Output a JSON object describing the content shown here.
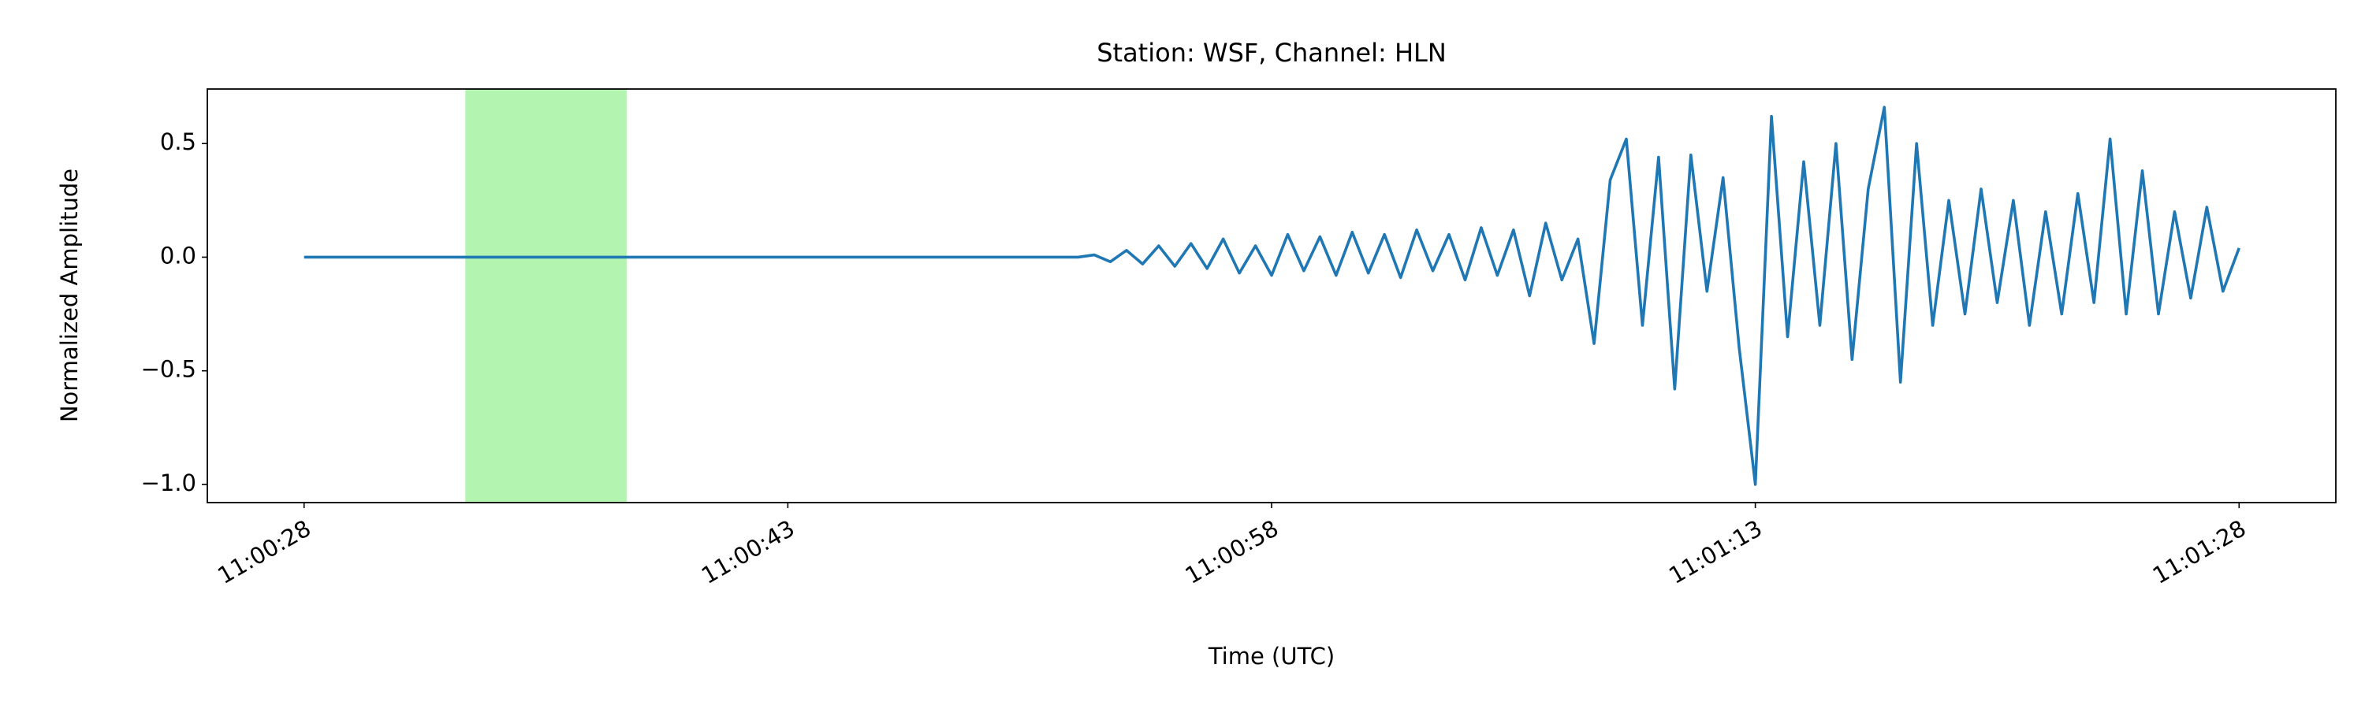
{
  "chart_data": {
    "type": "line",
    "title": "Station: WSF, Channel: HLN",
    "x_label": "Time (UTC)",
    "y_label": "Normalized Amplitude",
    "x": [
      39628,
      39640,
      39652,
      39652.5,
      39653,
      39653.5,
      39654,
      39654.5,
      39655,
      39655.5,
      39656,
      39656.5,
      39657,
      39657.5,
      39658,
      39658.5,
      39659,
      39659.5,
      39660,
      39660.5,
      39661,
      39661.5,
      39662,
      39662.5,
      39663,
      39663.5,
      39664,
      39664.5,
      39665,
      39665.5,
      39666,
      39666.5,
      39667,
      39667.5,
      39668,
      39668.5,
      39669,
      39669.5,
      39670,
      39670.5,
      39671,
      39671.5,
      39672,
      39672.5,
      39673,
      39673.5,
      39674,
      39674.5,
      39675,
      39675.5,
      39676,
      39676.5,
      39677,
      39677.5,
      39678,
      39678.5,
      39679,
      39679.5,
      39680,
      39680.5,
      39681,
      39681.5,
      39682,
      39682.5,
      39683,
      39683.5,
      39684,
      39684.5,
      39685,
      39685.5,
      39686,
      39686.5,
      39687,
      39687.5,
      39688
    ],
    "values": [
      0,
      0,
      0,
      0.01,
      -0.02,
      0.03,
      -0.03,
      0.05,
      -0.04,
      0.06,
      -0.05,
      0.08,
      -0.07,
      0.05,
      -0.08,
      0.1,
      -0.06,
      0.09,
      -0.08,
      0.11,
      -0.07,
      0.1,
      -0.09,
      0.12,
      -0.06,
      0.1,
      -0.1,
      0.13,
      -0.08,
      0.12,
      -0.17,
      0.15,
      -0.1,
      0.08,
      -0.38,
      0.34,
      0.52,
      -0.3,
      0.44,
      -0.58,
      0.45,
      -0.15,
      0.35,
      -0.4,
      -1.0,
      0.62,
      -0.35,
      0.42,
      -0.3,
      0.5,
      -0.45,
      0.3,
      0.66,
      -0.55,
      0.5,
      -0.3,
      0.25,
      -0.25,
      0.3,
      -0.2,
      0.25,
      -0.3,
      0.2,
      -0.25,
      0.28,
      -0.2,
      0.52,
      -0.25,
      0.38,
      -0.25,
      0.2,
      -0.18,
      0.22,
      -0.15,
      0.04
    ],
    "color": "#1f77b4",
    "highlight": {
      "x": [
        39633,
        39638
      ],
      "color": "#b3f5b0"
    },
    "xlim": [
      39625,
      39691
    ],
    "xticks": [
      {
        "value": 39628,
        "label": "11:00:28"
      },
      {
        "value": 39643,
        "label": "11:00:43"
      },
      {
        "value": 39658,
        "label": "11:00:58"
      },
      {
        "value": 39673,
        "label": "11:01:13"
      },
      {
        "value": 39688,
        "label": "11:01:28"
      }
    ],
    "ylim": [
      -1.08,
      0.74
    ],
    "yticks": [
      0.5,
      {
        "value": 0,
        "label": "0.0"
      },
      {
        "value": -0.5,
        "label": "−0.5"
      },
      {
        "value": -1.0,
        "label": "−1.0"
      }
    ],
    "grid": false
  }
}
